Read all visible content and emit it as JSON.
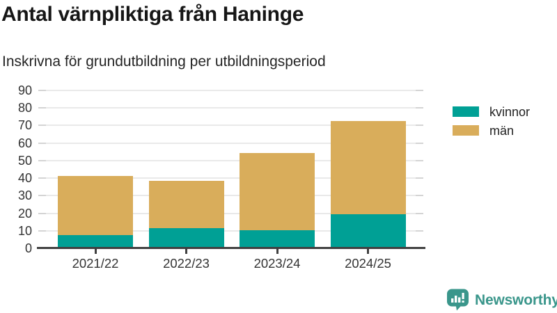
{
  "header": {
    "title": "Antal värnpliktiga från Haninge",
    "subtitle": "Inskrivna för grundutbildning per utbildningsperiod"
  },
  "chart_data": {
    "type": "bar",
    "stacked": true,
    "title": "Antal värnpliktiga från Haninge",
    "subtitle": "Inskrivna för grundutbildning per utbildningsperiod",
    "categories": [
      "2021/22",
      "2022/23",
      "2023/24",
      "2024/25"
    ],
    "series": [
      {
        "name": "kvinnor",
        "color": "#00a095",
        "values": [
          7,
          11,
          10,
          19
        ]
      },
      {
        "name": "män",
        "color": "#d9ad5b",
        "values": [
          34,
          27,
          44,
          53
        ]
      }
    ],
    "stack_totals": [
      41,
      38,
      54,
      72
    ],
    "xlabel": "",
    "ylabel": "",
    "ylim": [
      0,
      90
    ],
    "yticks": [
      0,
      10,
      20,
      30,
      40,
      50,
      60,
      70,
      80,
      90
    ],
    "grid": true,
    "legend_position": "right"
  },
  "footer": {
    "brand_name": "Newsworthy",
    "brand_color": "#3a968b"
  },
  "colors": {
    "kvinnor": "#00a095",
    "man": "#d9ad5b",
    "axis": "#404040",
    "gridline": "#e9e9e9",
    "tick_label": "#333333",
    "title": "#161616",
    "subtitle": "#242424"
  }
}
